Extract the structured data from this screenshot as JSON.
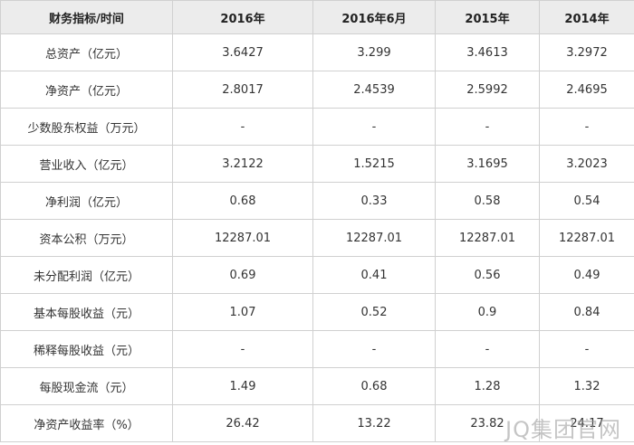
{
  "table": {
    "header": [
      "财务指标/时间",
      "2016年",
      "2016年6月",
      "2015年",
      "2014年"
    ],
    "rows": [
      [
        "总资产（亿元）",
        "3.6427",
        "3.299",
        "3.4613",
        "3.2972"
      ],
      [
        "净资产（亿元）",
        "2.8017",
        "2.4539",
        "2.5992",
        "2.4695"
      ],
      [
        "少数股东权益（万元）",
        "-",
        "-",
        "-",
        "-"
      ],
      [
        "营业收入（亿元）",
        "3.2122",
        "1.5215",
        "3.1695",
        "3.2023"
      ],
      [
        "净利润（亿元）",
        "0.68",
        "0.33",
        "0.58",
        "0.54"
      ],
      [
        "资本公积（万元）",
        "12287.01",
        "12287.01",
        "12287.01",
        "12287.01"
      ],
      [
        "未分配利润（亿元）",
        "0.69",
        "0.41",
        "0.56",
        "0.49"
      ],
      [
        "基本每股收益（元）",
        "1.07",
        "0.52",
        "0.9",
        "0.84"
      ],
      [
        "稀释每股收益（元）",
        "-",
        "-",
        "-",
        "-"
      ],
      [
        "每股现金流（元）",
        "1.49",
        "0.68",
        "1.28",
        "1.32"
      ],
      [
        "净资产收益率（%）",
        "26.42",
        "13.22",
        "23.82",
        "24.17"
      ]
    ]
  },
  "watermark": "JQ集团官网"
}
